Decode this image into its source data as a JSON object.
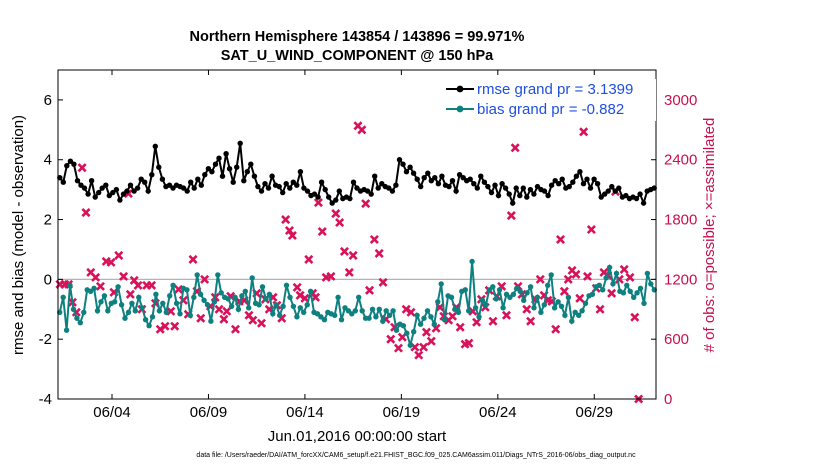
{
  "colors": {
    "rmse": "#000000",
    "bias": "#0e8080",
    "obs": "#d8125a",
    "right_axis": "#c8104f",
    "legend_text": "#1f4fe0",
    "zero_line": "#b4b4b4"
  },
  "chart_data": {
    "type": "line",
    "title_line1": "Northern Hemisphere 143854 / 143896 = 99.971%",
    "title_line2": "SAT_U_WIND_COMPONENT @ 150 hPa",
    "xlabel": "Jun.01,2016 00:00:00 start",
    "ylabel_left": "rmse and bias (model - observation)",
    "ylabel_right": "# of obs: o=possible; ×=assimilated",
    "ylim_left": [
      -4,
      7
    ],
    "yticks_left": [
      -4,
      -2,
      0,
      2,
      4,
      6
    ],
    "ylim_right": [
      0,
      3300
    ],
    "yticks_right": [
      0,
      600,
      1200,
      1800,
      2400,
      3000
    ],
    "x_days_range": [
      1.2,
      32.2
    ],
    "x_tick_days": [
      4,
      9,
      14,
      19,
      24,
      29
    ],
    "x_tick_labels": [
      "06/04",
      "06/09",
      "06/14",
      "06/19",
      "06/24",
      "06/29"
    ],
    "legend_position": "top-right",
    "footnote": "data file: /Users/raeder/DAI/ATM_forcXX/CAM6_setup/f.e21.FHIST_BGC.f09_025.CAM6assim.011/Diags_NTrS_2016-06/obs_diag_output.nc",
    "series": [
      {
        "name": "rmse grand pr = 3.1399",
        "axis": "left",
        "marker": "circle",
        "values": [
          3.4,
          3.25,
          3.8,
          3.95,
          3.85,
          3.3,
          3.15,
          3.05,
          2.85,
          3.3,
          2.75,
          2.9,
          3.05,
          3.15,
          2.8,
          2.9,
          3.0,
          2.65,
          2.85,
          2.95,
          3.15,
          2.95,
          3.05,
          3.35,
          3.25,
          2.95,
          3.5,
          4.45,
          3.75,
          3.35,
          3.1,
          3.15,
          3.05,
          3.15,
          3.1,
          3.05,
          2.95,
          3.25,
          3.05,
          3.35,
          3.15,
          3.5,
          3.7,
          3.6,
          3.85,
          4.05,
          3.45,
          4.2,
          3.7,
          3.25,
          3.75,
          4.55,
          3.3,
          3.6,
          3.85,
          3.45,
          3.1,
          2.95,
          3.2,
          3.05,
          3.45,
          3.15,
          3.1,
          2.9,
          3.2,
          3.05,
          3.25,
          3.15,
          3.6,
          3.05,
          2.95,
          2.8,
          2.85,
          2.75,
          3.25,
          3.0,
          2.75,
          2.55,
          2.65,
          2.95,
          2.7,
          2.75,
          2.7,
          3.25,
          3.05,
          2.95,
          3.0,
          2.95,
          2.85,
          3.45,
          3.05,
          3.2,
          3.1,
          3.05,
          2.95,
          3.15,
          4.0,
          3.85,
          3.6,
          3.75,
          3.55,
          3.35,
          3.1,
          3.4,
          3.55,
          3.3,
          3.4,
          3.2,
          3.45,
          3.15,
          3.1,
          3.3,
          2.95,
          3.5,
          3.4,
          3.3,
          3.35,
          3.2,
          3.05,
          3.45,
          3.25,
          3.1,
          2.9,
          3.15,
          2.8,
          3.2,
          3.05,
          2.85,
          2.55,
          3.05,
          2.8,
          3.05,
          2.75,
          3.0,
          2.85,
          3.1,
          3.0,
          2.95,
          2.8,
          3.15,
          3.3,
          3.2,
          3.35,
          3.05,
          3.1,
          3.25,
          3.45,
          3.6,
          3.2,
          3.35,
          3.05,
          3.35,
          3.2,
          2.75,
          2.85,
          2.95,
          3.1,
          2.95,
          3.05,
          2.75,
          2.8,
          2.7,
          2.75,
          2.7,
          2.85,
          2.55,
          2.95,
          3.0,
          3.05
        ]
      },
      {
        "name": "bias grand pr = -0.882",
        "axis": "left",
        "marker": "circle",
        "values": [
          -1.1,
          -0.6,
          -1.7,
          -0.2,
          -1.0,
          -1.3,
          -1.45,
          -1.1,
          -0.35,
          -0.4,
          -0.3,
          -1.05,
          -0.75,
          -0.55,
          -1.05,
          -0.8,
          -0.75,
          -0.25,
          -0.85,
          -1.3,
          -1.1,
          -0.8,
          -1.05,
          -0.6,
          -0.95,
          -1.35,
          -1.55,
          -1.25,
          -0.5,
          -1.05,
          -0.8,
          -1.1,
          -0.55,
          -0.2,
          -0.8,
          -1.15,
          -0.3,
          -0.35,
          -1.2,
          -0.6,
          0.15,
          -0.5,
          -0.7,
          -0.85,
          -1.4,
          -0.75,
          0.15,
          -0.45,
          -0.6,
          -0.65,
          -0.9,
          -0.6,
          -1.0,
          -0.55,
          -0.4,
          -0.95,
          0.05,
          -0.8,
          -0.85,
          -0.25,
          -0.65,
          -0.5,
          -1.15,
          -0.85,
          -1.2,
          -0.9,
          -0.2,
          -0.6,
          -0.9,
          -1.25,
          -0.95,
          -1.1,
          -0.85,
          -0.4,
          -1.1,
          -1.15,
          -1.25,
          -1.35,
          -1.1,
          -1.15,
          -1.2,
          -0.6,
          -1.35,
          -0.95,
          -1.05,
          -1.15,
          -1.05,
          -0.6,
          -1.05,
          -1.3,
          -1.3,
          -1.0,
          -1.25,
          -1.0,
          -1.4,
          -1.05,
          -1.2,
          -1.05,
          -1.7,
          -1.5,
          -1.55,
          -1.8,
          -2.2,
          -1.75,
          -1.2,
          -1.5,
          -1.3,
          -1.05,
          -1.25,
          -1.5,
          -0.75,
          -0.15,
          -1.35,
          -0.55,
          -0.6,
          -1.0,
          -1.1,
          -0.4,
          -0.35,
          -1.05,
          0.6,
          -0.95,
          -1.25,
          -0.7,
          -0.85,
          -0.35,
          -0.25,
          -0.65,
          -0.35,
          -0.95,
          -0.5,
          -0.6,
          -0.5,
          -0.3,
          -0.4,
          -0.7,
          -0.45,
          -0.25,
          -0.95,
          -0.6,
          -1.1,
          -0.85,
          -0.2,
          0.15,
          -0.95,
          -0.75,
          -0.9,
          -1.2,
          -0.6,
          -1.4,
          -1.1,
          -1.2,
          -1.05,
          -0.8,
          -0.55,
          -0.5,
          -0.25,
          -0.2,
          -0.35,
          0.05,
          0.4,
          -0.15,
          0.2,
          -0.4,
          -0.45,
          -0.2,
          -0.4,
          -0.6,
          -0.45,
          -0.3,
          -0.8,
          0.2,
          -0.15,
          -0.35
        ]
      },
      {
        "name": "possible",
        "axis": "right",
        "marker": "circle",
        "values": []
      },
      {
        "name": "assimilated",
        "axis": "right",
        "marker": "x",
        "points": [
          [
            1.3,
            1150
          ],
          [
            1.55,
            1150
          ],
          [
            1.75,
            1150
          ],
          [
            1.95,
            970
          ],
          [
            2.15,
            870
          ],
          [
            2.45,
            2320
          ],
          [
            2.65,
            1870
          ],
          [
            2.9,
            1270
          ],
          [
            3.15,
            1220
          ],
          [
            3.4,
            1130
          ],
          [
            3.7,
            1380
          ],
          [
            3.95,
            1370
          ],
          [
            4.1,
            1070
          ],
          [
            4.35,
            1440
          ],
          [
            4.6,
            1230
          ],
          [
            4.85,
            2060
          ],
          [
            4.95,
            1050
          ],
          [
            5.15,
            1190
          ],
          [
            5.35,
            1140
          ],
          [
            5.55,
            900
          ],
          [
            5.8,
            1140
          ],
          [
            6.05,
            1140
          ],
          [
            6.25,
            960
          ],
          [
            6.5,
            700
          ],
          [
            6.75,
            730
          ],
          [
            7.05,
            880
          ],
          [
            7.25,
            730
          ],
          [
            7.45,
            1100
          ],
          [
            7.7,
            990
          ],
          [
            7.95,
            850
          ],
          [
            8.2,
            1400
          ],
          [
            8.4,
            1080
          ],
          [
            8.6,
            810
          ],
          [
            8.8,
            1200
          ],
          [
            9.1,
            930
          ],
          [
            9.35,
            1020
          ],
          [
            9.55,
            900
          ],
          [
            9.8,
            800
          ],
          [
            9.95,
            880
          ],
          [
            10.15,
            1030
          ],
          [
            10.4,
            700
          ],
          [
            10.6,
            980
          ],
          [
            10.85,
            990
          ],
          [
            11.1,
            840
          ],
          [
            11.3,
            790
          ],
          [
            11.5,
            1060
          ],
          [
            11.75,
            760
          ],
          [
            11.95,
            1000
          ],
          [
            12.15,
            900
          ],
          [
            12.35,
            1020
          ],
          [
            12.55,
            940
          ],
          [
            12.8,
            810
          ],
          [
            13.0,
            1800
          ],
          [
            13.2,
            1690
          ],
          [
            13.35,
            1640
          ],
          [
            13.6,
            1120
          ],
          [
            13.75,
            1040
          ],
          [
            14.0,
            1010
          ],
          [
            14.2,
            1400
          ],
          [
            14.4,
            1060
          ],
          [
            14.55,
            1020
          ],
          [
            14.7,
            1970
          ],
          [
            14.9,
            1680
          ],
          [
            15.1,
            1220
          ],
          [
            15.35,
            1230
          ],
          [
            15.6,
            1860
          ],
          [
            15.8,
            1770
          ],
          [
            16.05,
            1480
          ],
          [
            16.3,
            1270
          ],
          [
            16.5,
            1440
          ],
          [
            16.75,
            2740
          ],
          [
            16.95,
            2700
          ],
          [
            17.15,
            1960
          ],
          [
            17.35,
            1090
          ],
          [
            17.6,
            1600
          ],
          [
            17.85,
            1460
          ],
          [
            18.05,
            1170
          ],
          [
            18.2,
            800
          ],
          [
            18.45,
            600
          ],
          [
            18.65,
            720
          ],
          [
            18.85,
            510
          ],
          [
            19.05,
            620
          ],
          [
            19.25,
            900
          ],
          [
            19.5,
            870
          ],
          [
            19.7,
            520
          ],
          [
            19.9,
            440
          ],
          [
            20.15,
            520
          ],
          [
            20.3,
            670
          ],
          [
            20.55,
            580
          ],
          [
            20.8,
            710
          ],
          [
            21.0,
            920
          ],
          [
            21.2,
            830
          ],
          [
            21.45,
            790
          ],
          [
            21.65,
            830
          ],
          [
            21.85,
            920
          ],
          [
            22.05,
            720
          ],
          [
            22.3,
            550
          ],
          [
            22.5,
            560
          ],
          [
            22.7,
            880
          ],
          [
            22.9,
            770
          ],
          [
            23.15,
            1000
          ],
          [
            23.35,
            920
          ],
          [
            23.55,
            1090
          ],
          [
            23.75,
            780
          ],
          [
            23.95,
            1030
          ],
          [
            24.2,
            1130
          ],
          [
            24.45,
            840
          ],
          [
            24.7,
            1840
          ],
          [
            24.9,
            2520
          ],
          [
            25.05,
            1130
          ],
          [
            25.25,
            1050
          ],
          [
            25.5,
            900
          ],
          [
            25.7,
            780
          ],
          [
            25.95,
            1000
          ],
          [
            26.2,
            1200
          ],
          [
            26.4,
            1040
          ],
          [
            26.6,
            990
          ],
          [
            26.8,
            980
          ],
          [
            27.0,
            700
          ],
          [
            27.25,
            1600
          ],
          [
            27.45,
            1080
          ],
          [
            27.65,
            1200
          ],
          [
            27.85,
            1290
          ],
          [
            28.05,
            1250
          ],
          [
            28.25,
            1010
          ],
          [
            28.45,
            2680
          ],
          [
            28.65,
            1230
          ],
          [
            28.85,
            1700
          ],
          [
            29.1,
            1110
          ],
          [
            29.3,
            900
          ],
          [
            29.5,
            1270
          ],
          [
            29.7,
            1240
          ],
          [
            29.9,
            1060
          ],
          [
            30.1,
            2080
          ],
          [
            30.3,
            1200
          ],
          [
            30.55,
            1300
          ],
          [
            30.85,
            1220
          ],
          [
            31.1,
            820
          ],
          [
            31.3,
            0
          ]
        ]
      }
    ]
  }
}
